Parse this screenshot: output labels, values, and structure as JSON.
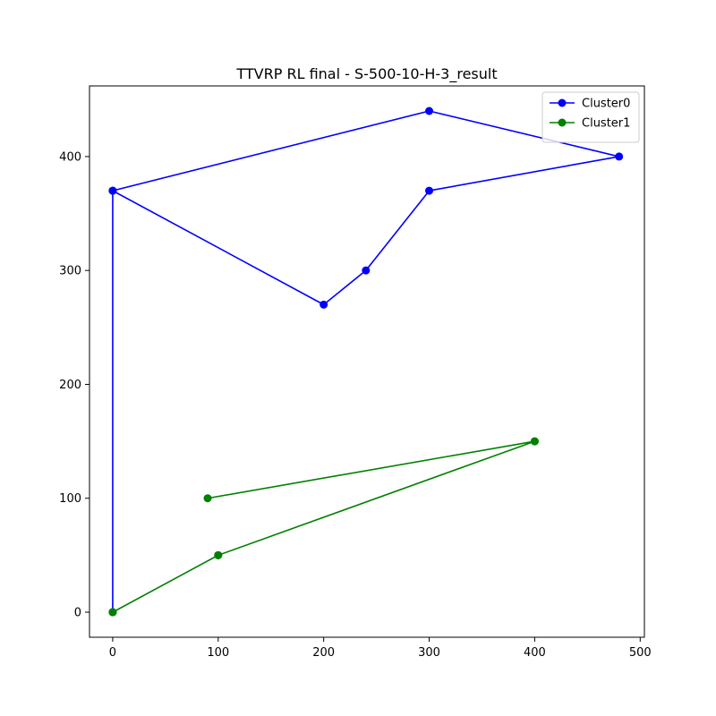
{
  "chart_data": {
    "type": "line",
    "title": "TTVRP RL final - S-500-10-H-3_result",
    "xlabel": "",
    "ylabel": "",
    "xlim": [
      -22,
      504
    ],
    "ylim": [
      -22,
      462
    ],
    "xticks": [
      0,
      100,
      200,
      300,
      400,
      500
    ],
    "yticks": [
      0,
      100,
      200,
      300,
      400
    ],
    "grid": false,
    "legend_position": "top-right",
    "series": [
      {
        "name": "Cluster0",
        "color": "#0000ff",
        "marker": "circle",
        "points": [
          [
            0,
            0
          ],
          [
            0,
            370
          ],
          [
            300,
            440
          ],
          [
            480,
            400
          ],
          [
            300,
            370
          ],
          [
            240,
            300
          ],
          [
            200,
            270
          ],
          [
            0,
            370
          ],
          [
            0,
            0
          ]
        ]
      },
      {
        "name": "Cluster1",
        "color": "#008000",
        "marker": "circle",
        "points": [
          [
            0,
            0
          ],
          [
            100,
            50
          ],
          [
            400,
            150
          ],
          [
            90,
            100
          ],
          [
            400,
            150
          ],
          [
            100,
            50
          ],
          [
            0,
            0
          ]
        ]
      }
    ]
  }
}
